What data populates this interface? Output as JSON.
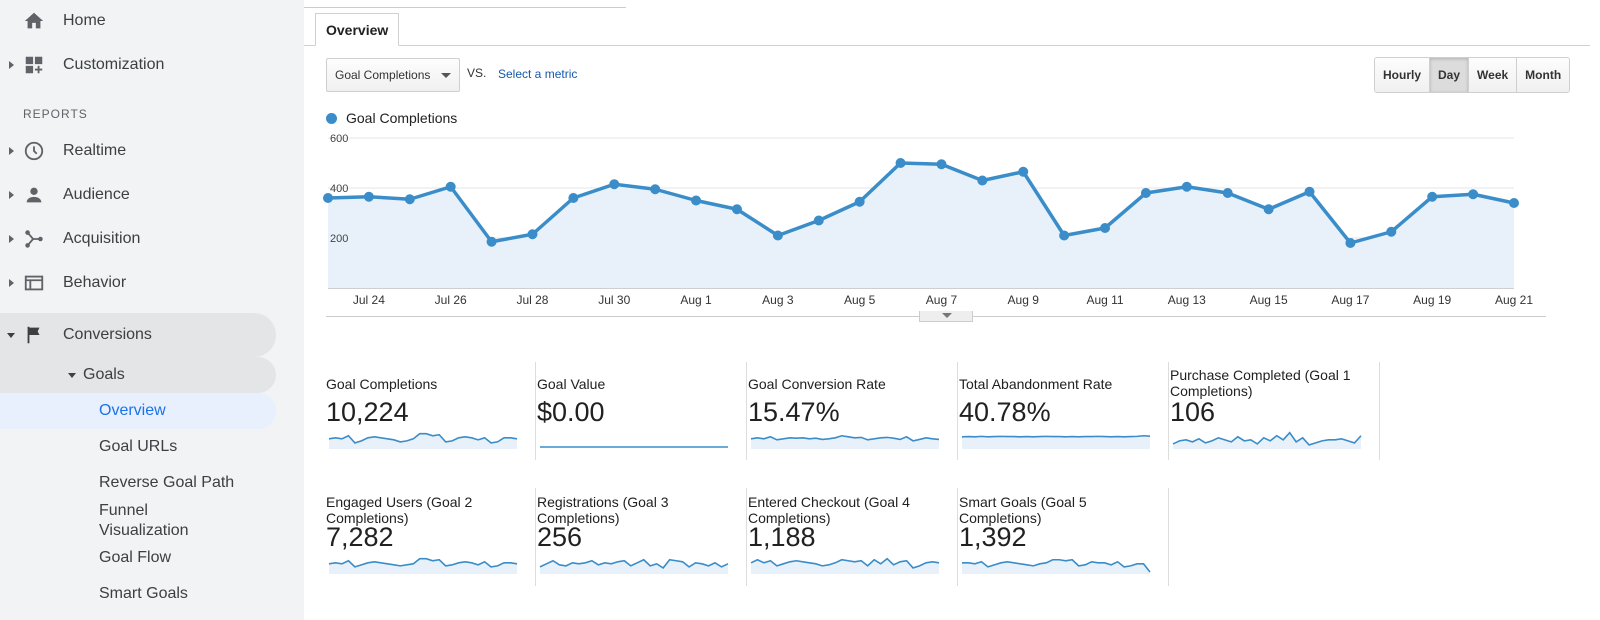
{
  "sidebar": {
    "home": "Home",
    "customization": "Customization",
    "reports_header": "REPORTS",
    "realtime": "Realtime",
    "audience": "Audience",
    "acquisition": "Acquisition",
    "behavior": "Behavior",
    "conversions": "Conversions",
    "goals": "Goals",
    "goal_items": [
      "Overview",
      "Goal URLs",
      "Reverse Goal Path",
      "Funnel Visualization",
      "Goal Flow",
      "Smart Goals"
    ],
    "icons": [
      "home-icon",
      "customization-icon",
      "realtime-clock-icon",
      "audience-person-icon",
      "acquisition-icon",
      "behavior-icon",
      "conversions-flag-icon"
    ]
  },
  "tabs": {
    "overview": "Overview"
  },
  "toolbar": {
    "metric": "Goal Completions",
    "vs": "VS.",
    "select_metric": "Select a metric",
    "granularity": [
      "Hourly",
      "Day",
      "Week",
      "Month"
    ],
    "active_granularity": "Day"
  },
  "colors": {
    "series": "#3a8dc9",
    "area": "#e8f1fa",
    "link": "#1558b0"
  },
  "chart_data": {
    "type": "line",
    "series": [
      {
        "name": "Goal Completions",
        "values": [
          360,
          365,
          355,
          405,
          185,
          215,
          360,
          415,
          395,
          350,
          315,
          210,
          270,
          345,
          500,
          495,
          430,
          465,
          210,
          240,
          380,
          405,
          380,
          315,
          385,
          180,
          225,
          365,
          375,
          340
        ]
      }
    ],
    "x_tick_labels": [
      "Jul 24",
      "Jul 26",
      "Jul 28",
      "Jul 30",
      "Aug 1",
      "Aug 3",
      "Aug 5",
      "Aug 7",
      "Aug 9",
      "Aug 11",
      "Aug 13",
      "Aug 15",
      "Aug 17",
      "Aug 19",
      "Aug 21"
    ],
    "y_tick_labels": [
      "600",
      "400",
      "200"
    ],
    "ylim": [
      0,
      600
    ],
    "grid": true,
    "legend_placement": "top-left"
  },
  "scorecards": [
    {
      "title": "Goal Completions",
      "value": "10,224",
      "spark": [
        0.45,
        0.5,
        0.45,
        0.6,
        0.25,
        0.35,
        0.5,
        0.55,
        0.5,
        0.45,
        0.4,
        0.3,
        0.35,
        0.45,
        0.7,
        0.7,
        0.6,
        0.65,
        0.3,
        0.35,
        0.5,
        0.55,
        0.5,
        0.4,
        0.5,
        0.25,
        0.3,
        0.5,
        0.5,
        0.45
      ]
    },
    {
      "title": "Goal Value",
      "value": "$0.00",
      "spark": [
        0,
        0,
        0,
        0,
        0,
        0,
        0,
        0,
        0,
        0,
        0,
        0,
        0,
        0,
        0,
        0,
        0,
        0,
        0,
        0,
        0,
        0,
        0,
        0,
        0,
        0,
        0,
        0,
        0,
        0
      ]
    },
    {
      "title": "Goal Conversion Rate",
      "value": "15.47%",
      "spark": [
        0.45,
        0.5,
        0.45,
        0.55,
        0.4,
        0.45,
        0.5,
        0.48,
        0.5,
        0.45,
        0.48,
        0.42,
        0.45,
        0.5,
        0.6,
        0.55,
        0.5,
        0.52,
        0.4,
        0.45,
        0.5,
        0.52,
        0.48,
        0.42,
        0.55,
        0.35,
        0.42,
        0.5,
        0.45,
        0.42
      ]
    },
    {
      "title": "Total Abandonment Rate",
      "value": "40.78%",
      "spark": [
        0.55,
        0.56,
        0.55,
        0.57,
        0.55,
        0.56,
        0.57,
        0.56,
        0.56,
        0.55,
        0.56,
        0.55,
        0.56,
        0.57,
        0.56,
        0.56,
        0.55,
        0.56,
        0.55,
        0.56,
        0.56,
        0.57,
        0.56,
        0.55,
        0.56,
        0.55,
        0.56,
        0.57,
        0.6,
        0.58
      ]
    },
    {
      "title": "Purchase Completed (Goal 1 Completions)",
      "value": "106",
      "spark": [
        0.2,
        0.35,
        0.4,
        0.3,
        0.45,
        0.25,
        0.35,
        0.5,
        0.4,
        0.3,
        0.55,
        0.35,
        0.4,
        0.2,
        0.5,
        0.35,
        0.6,
        0.4,
        0.75,
        0.3,
        0.5,
        0.15,
        0.25,
        0.35,
        0.4,
        0.4,
        0.45,
        0.35,
        0.25,
        0.6
      ]
    },
    {
      "title": "Engaged Users (Goal 2 Completions)",
      "value": "7,282",
      "spark": [
        0.45,
        0.5,
        0.45,
        0.6,
        0.3,
        0.4,
        0.5,
        0.55,
        0.5,
        0.45,
        0.4,
        0.35,
        0.4,
        0.45,
        0.7,
        0.7,
        0.6,
        0.65,
        0.35,
        0.4,
        0.5,
        0.55,
        0.5,
        0.4,
        0.55,
        0.3,
        0.35,
        0.5,
        0.5,
        0.45
      ]
    },
    {
      "title": "Registrations (Goal 3 Completions)",
      "value": "256",
      "spark": [
        0.3,
        0.45,
        0.6,
        0.4,
        0.35,
        0.5,
        0.45,
        0.5,
        0.6,
        0.4,
        0.5,
        0.45,
        0.55,
        0.6,
        0.35,
        0.5,
        0.65,
        0.35,
        0.45,
        0.25,
        0.65,
        0.6,
        0.55,
        0.3,
        0.5,
        0.45,
        0.35,
        0.5,
        0.3,
        0.45
      ]
    },
    {
      "title": "Entered Checkout (Goal 4 Completions)",
      "value": "1,188",
      "spark": [
        0.5,
        0.65,
        0.5,
        0.6,
        0.35,
        0.45,
        0.55,
        0.6,
        0.55,
        0.5,
        0.45,
        0.35,
        0.4,
        0.5,
        0.65,
        0.6,
        0.55,
        0.6,
        0.35,
        0.65,
        0.45,
        0.7,
        0.4,
        0.55,
        0.6,
        0.25,
        0.35,
        0.5,
        0.55,
        0.5
      ]
    },
    {
      "title": "Smart Goals (Goal 5 Completions)",
      "value": "1,392",
      "spark": [
        0.5,
        0.5,
        0.45,
        0.55,
        0.3,
        0.4,
        0.5,
        0.55,
        0.5,
        0.45,
        0.4,
        0.35,
        0.45,
        0.5,
        0.65,
        0.65,
        0.6,
        0.65,
        0.35,
        0.4,
        0.55,
        0.5,
        0.5,
        0.4,
        0.55,
        0.3,
        0.35,
        0.45,
        0.45,
        0.05
      ]
    }
  ]
}
